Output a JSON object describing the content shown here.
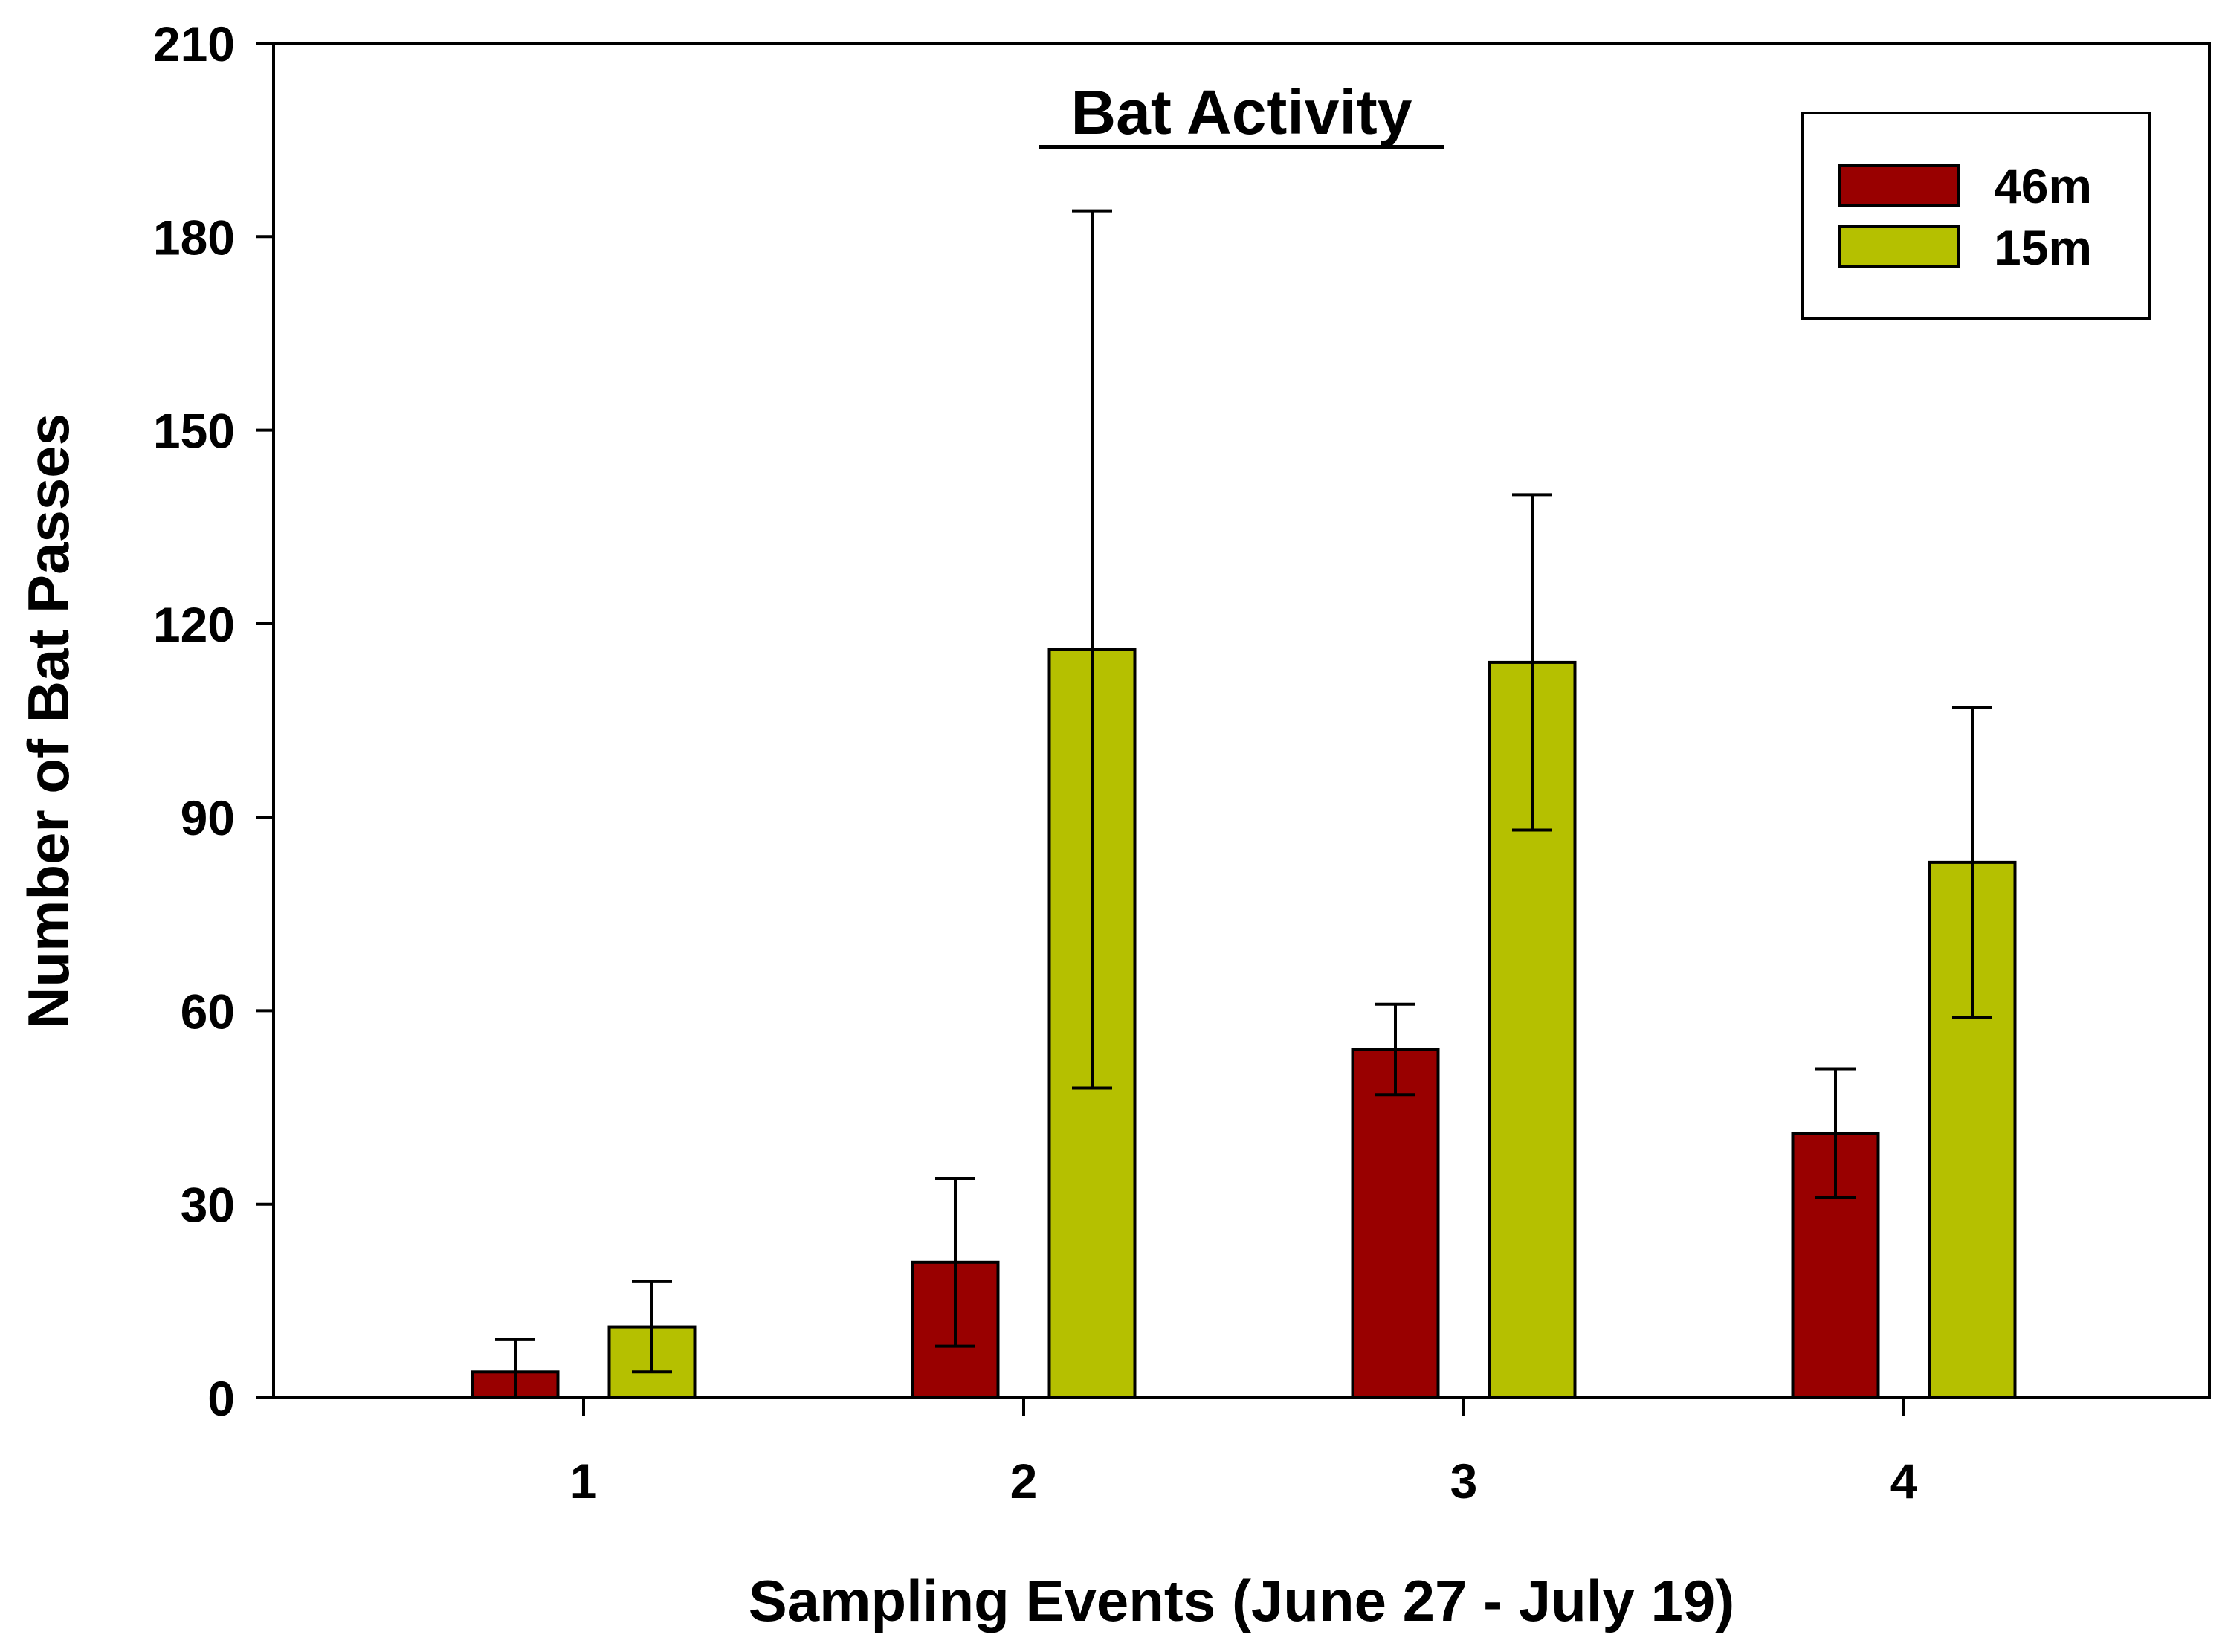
{
  "chart_data": {
    "type": "bar",
    "title": "Bat Activity",
    "xlabel": "Sampling Events (June 27 - July 19)",
    "ylabel": "Number of Bat Passes",
    "categories": [
      "1",
      "2",
      "3",
      "4"
    ],
    "ylim": [
      0,
      210
    ],
    "yticks": [
      0,
      30,
      60,
      90,
      120,
      150,
      180,
      210
    ],
    "grid": false,
    "legend_position": "top-right",
    "series": [
      {
        "name": "46m",
        "color": "#990000",
        "values": [
          4,
          21,
          54,
          41
        ],
        "error_low": [
          0,
          8,
          47,
          31
        ],
        "error_high": [
          9,
          34,
          61,
          51
        ]
      },
      {
        "name": "15m",
        "color": "#B5C000",
        "values": [
          11,
          116,
          114,
          83
        ],
        "error_low": [
          4,
          48,
          88,
          59
        ],
        "error_high": [
          18,
          184,
          140,
          107
        ]
      }
    ]
  }
}
